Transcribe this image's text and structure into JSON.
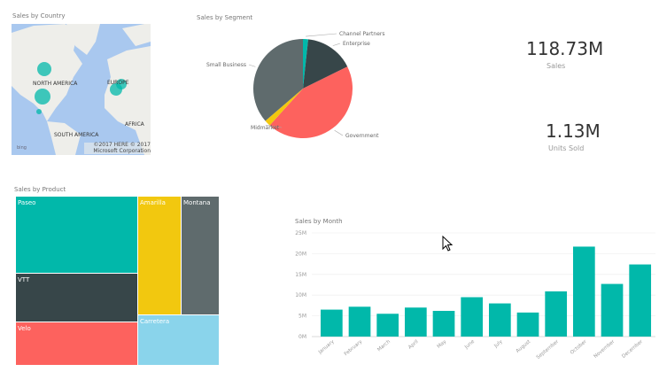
{
  "map": {
    "title": "Sales by Country",
    "labels": [
      "NORTH AMERICA",
      "EUROPE",
      "AFRICA",
      "SOUTH AMERICA"
    ],
    "attribution": "©2017 HERE  © 2017 Microsoft Corporation",
    "logo": "bing",
    "bubble_color": "#01B8AA"
  },
  "segment": {
    "title": "Sales by Segment",
    "chart_data": {
      "type": "pie",
      "title": "Sales by Segment",
      "categories": [
        "Channel Partners",
        "Enterprise",
        "Government",
        "Midmarket",
        "Small Business"
      ],
      "values": [
        1.7,
        16.0,
        44.0,
        2.0,
        36.3
      ],
      "colors": [
        "#01B8AA",
        "#374649",
        "#FD625E",
        "#F2C80F",
        "#5F6B6D"
      ]
    }
  },
  "cards": [
    {
      "value": "118.73M",
      "label": "Sales"
    },
    {
      "value": "1.13M",
      "label": "Units Sold"
    }
  ],
  "product": {
    "title": "Sales by Product",
    "chart_data": {
      "type": "treemap",
      "categories": [
        "Paseo",
        "VTT",
        "Velo",
        "Amarilla",
        "Montana",
        "Carretera"
      ],
      "colors": [
        "#01B8AA",
        "#374649",
        "#FD625E",
        "#F2C80F",
        "#5F6B6D",
        "#8AD4EB"
      ]
    }
  },
  "month": {
    "title": "Sales by Month",
    "chart_data": {
      "type": "bar",
      "title": "Sales by Month",
      "categories": [
        "January",
        "February",
        "March",
        "April",
        "May",
        "June",
        "July",
        "August",
        "September",
        "October",
        "November",
        "December"
      ],
      "values": [
        6.5,
        7.2,
        5.5,
        7.0,
        6.2,
        9.5,
        8.0,
        5.8,
        10.9,
        21.7,
        12.7,
        17.4
      ],
      "unit": "M",
      "ylim": [
        0,
        25
      ],
      "yticks": [
        "0M",
        "5M",
        "10M",
        "15M",
        "20M",
        "25M"
      ],
      "grid": true,
      "color": "#01B8AA"
    }
  }
}
